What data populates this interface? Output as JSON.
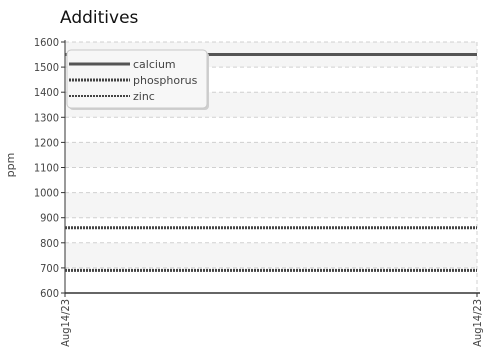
{
  "chart_data": {
    "type": "line",
    "title": "Additives",
    "ylabel": "ppm",
    "xlabel": "",
    "ylim": [
      600,
      1600
    ],
    "yticks": [
      600,
      700,
      800,
      900,
      1000,
      1100,
      1200,
      1300,
      1400,
      1500,
      1600
    ],
    "x_tick_labels": [
      "Aug14/23",
      "Aug14/23"
    ],
    "grid": true,
    "legend_position": "top-left",
    "series": [
      {
        "name": "calcium",
        "values": [
          1550,
          1550
        ],
        "style": "solid",
        "color": "#555555"
      },
      {
        "name": "phosphorus",
        "values": [
          860,
          860
        ],
        "style": "dotted",
        "color": "#444444"
      },
      {
        "name": "zinc",
        "values": [
          690,
          690
        ],
        "style": "dotted",
        "color": "#444444"
      }
    ]
  }
}
